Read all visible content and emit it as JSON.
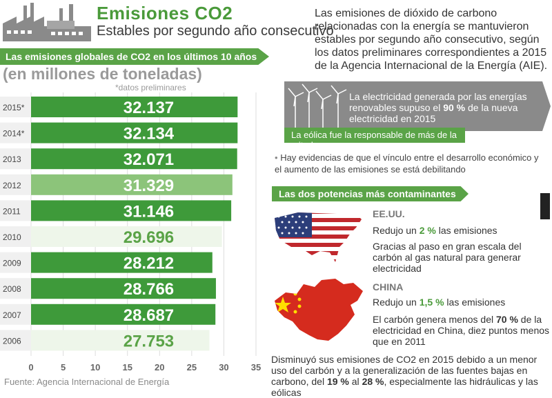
{
  "header": {
    "title": "Emisiones CO2",
    "subtitle": "Estables por segundo año consecutivo",
    "intro": "Las emisiones de dióxido de carbono relacionadas con la energía se mantuvieron estables por segundo año consecutivo, según los datos preliminares correspondientes a 2015 de la Agencia Internacional de la Energía (AIE)."
  },
  "chart_data": {
    "type": "bar",
    "orientation": "horizontal",
    "title": "Las emisiones globales de CO2 en los últimos 10 años",
    "unit_label": "(en millones de toneladas)",
    "note": "*datos preliminares",
    "categories": [
      "2015*",
      "2014*",
      "2013",
      "2012",
      "2011",
      "2010",
      "2009",
      "2008",
      "2007",
      "2006"
    ],
    "values": [
      32.137,
      32.134,
      32.071,
      31.329,
      31.146,
      29.696,
      28.212,
      28.766,
      28.687,
      27.753
    ],
    "value_labels": [
      "32.137",
      "32.134",
      "32.071",
      "31.329",
      "31.146",
      "29.696",
      "28.212",
      "28.766",
      "28.687",
      "27.753"
    ],
    "xlim": [
      0,
      35
    ],
    "xticks": [
      "0",
      "5",
      "10",
      "15",
      "20",
      "25",
      "30",
      "35"
    ],
    "bar_colors": [
      "#3e9a3a",
      "#3e9a3a",
      "#3e9a3a",
      "#8cc47a",
      "#3e9a3a",
      "#eef6ea",
      "#3e9a3a",
      "#3e9a3a",
      "#3e9a3a",
      "#eef6ea"
    ],
    "label_colors": [
      "#ffffff",
      "#ffffff",
      "#ffffff",
      "#ffffff",
      "#ffffff",
      "#5aa347",
      "#ffffff",
      "#ffffff",
      "#ffffff",
      "#5aa347"
    ],
    "source": "Fuente: Agencia Internacional de Energía"
  },
  "renewables": {
    "text_a": "La electricidad generada por las energías renovables supuso el ",
    "text_pct": "90 %",
    "text_b": " de la nueva electricidad en 2015",
    "strip": "La eólica fue la responsable de más de la mitad"
  },
  "bullet": {
    "dot": "•",
    "text": "Hay evidencias de que el vínculo entre el desarrollo económico y el aumento de las emisiones se está debilitando"
  },
  "powers": {
    "banner": "Las dos potencias más contaminantes",
    "usa": {
      "name": "EE.UU.",
      "cut_a": "Redujo un ",
      "cut_pct": "2 %",
      "cut_b": " las emisiones",
      "desc": "Gracias al paso en gran escala del carbón al gas natural para generar electricidad"
    },
    "china": {
      "name": "CHINA",
      "cut_a": "Redujo un ",
      "cut_pct": "1,5 %",
      "cut_b": " las emisiones",
      "desc_a": "El carbón genera menos del ",
      "desc_pct": "70 %",
      "desc_b": " de la electricidad en China, diez puntos menos que en 2011",
      "more_a": "Disminuyó sus emisiones de CO2 en 2015 debido a un menor uso del carbón y a la generalización de las fuentes bajas en carbono, del ",
      "more_pct1": "19 %",
      "more_mid": " al ",
      "more_pct2": "28 %",
      "more_b": ", especialmente las hidráulicas y las eólicas"
    }
  },
  "colors": {
    "accent": "#5aa347",
    "dark_green": "#3e9a3a",
    "gray": "#9a9a9a"
  }
}
